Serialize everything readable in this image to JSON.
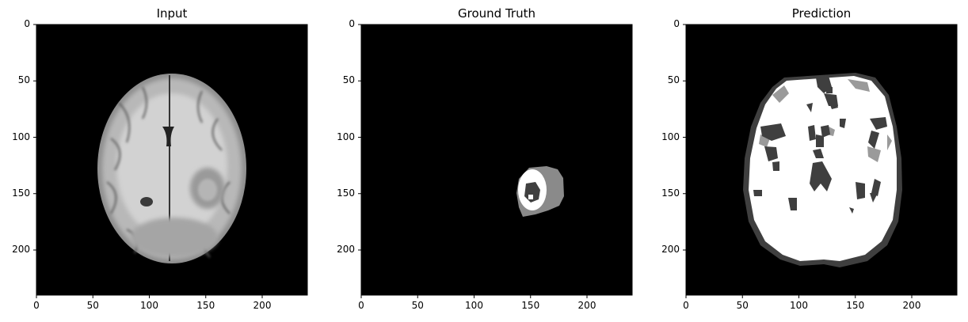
{
  "figure": {
    "panels": [
      {
        "title": "Input",
        "image_description": "axial brain MRI slice in grayscale on black background"
      },
      {
        "title": "Ground Truth",
        "image_description": "segmentation mask: small lesion with white ring, grey edema and dark core"
      },
      {
        "title": "Prediction",
        "image_description": "predicted segmentation mask covering most of the brain in white with dark grey holes and outline"
      }
    ],
    "x_ticks": [
      "0",
      "50",
      "100",
      "150",
      "200"
    ],
    "y_ticks": [
      "0",
      "50",
      "100",
      "150",
      "200"
    ],
    "axis_range": {
      "x": [
        0,
        240
      ],
      "y": [
        0,
        240
      ]
    }
  },
  "colors": {
    "background": "#000000",
    "mask_white": "#ffffff",
    "mask_grey": "#8a8a8a",
    "mask_dark": "#404040"
  }
}
